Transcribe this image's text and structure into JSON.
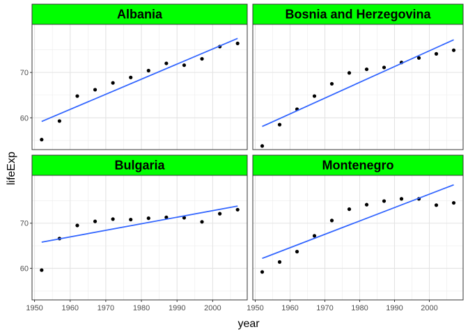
{
  "chart_data": {
    "type": "scatter",
    "facet_strip_color": "#00ff00",
    "point_color": "#000000",
    "trend_color": "#3366ff",
    "trend_type": "linear",
    "grid": true,
    "xlabel": "year",
    "ylabel": "lifeExp",
    "xlim": [
      1949.3,
      2009.7
    ],
    "ylim": [
      53.0,
      80.6
    ],
    "xticks": [
      1950,
      1960,
      1970,
      1980,
      1990,
      2000
    ],
    "xtick_labels": [
      "1950",
      "1960",
      "1970",
      "1980",
      "1990",
      "2000"
    ],
    "yticks": [
      60,
      70
    ],
    "ytick_labels": [
      "60",
      "70"
    ],
    "panels": [
      {
        "title": "Albania",
        "x": [
          1952,
          1957,
          1962,
          1967,
          1972,
          1977,
          1982,
          1987,
          1992,
          1997,
          2002,
          2007
        ],
        "y": [
          55.2,
          59.3,
          64.8,
          66.2,
          67.7,
          68.9,
          70.4,
          72.0,
          71.6,
          73.0,
          75.7,
          76.4
        ],
        "trend": [
          [
            1952,
            59.2
          ],
          [
            2007,
            77.5
          ]
        ]
      },
      {
        "title": "Bosnia and Herzegovina",
        "x": [
          1952,
          1957,
          1962,
          1967,
          1972,
          1977,
          1982,
          1987,
          1992,
          1997,
          2002,
          2007
        ],
        "y": [
          53.8,
          58.5,
          61.9,
          64.8,
          67.5,
          69.9,
          70.7,
          71.1,
          72.2,
          73.2,
          74.1,
          74.9
        ],
        "trend": [
          [
            1952,
            58.1
          ],
          [
            2007,
            77.2
          ]
        ]
      },
      {
        "title": "Bulgaria",
        "x": [
          1952,
          1957,
          1962,
          1967,
          1972,
          1977,
          1982,
          1987,
          1992,
          1997,
          2002,
          2007
        ],
        "y": [
          59.6,
          66.6,
          69.5,
          70.4,
          70.9,
          70.8,
          71.1,
          71.3,
          71.2,
          70.3,
          72.1,
          73.0
        ],
        "trend": [
          [
            1952,
            65.8
          ],
          [
            2007,
            73.8
          ]
        ]
      },
      {
        "title": "Montenegro",
        "x": [
          1952,
          1957,
          1962,
          1967,
          1972,
          1977,
          1982,
          1987,
          1992,
          1997,
          2002,
          2007
        ],
        "y": [
          59.2,
          61.4,
          63.7,
          67.2,
          70.6,
          73.1,
          74.1,
          74.9,
          75.4,
          75.4,
          74.0,
          74.5
        ],
        "trend": [
          [
            1952,
            62.2
          ],
          [
            2007,
            78.5
          ]
        ]
      }
    ]
  }
}
